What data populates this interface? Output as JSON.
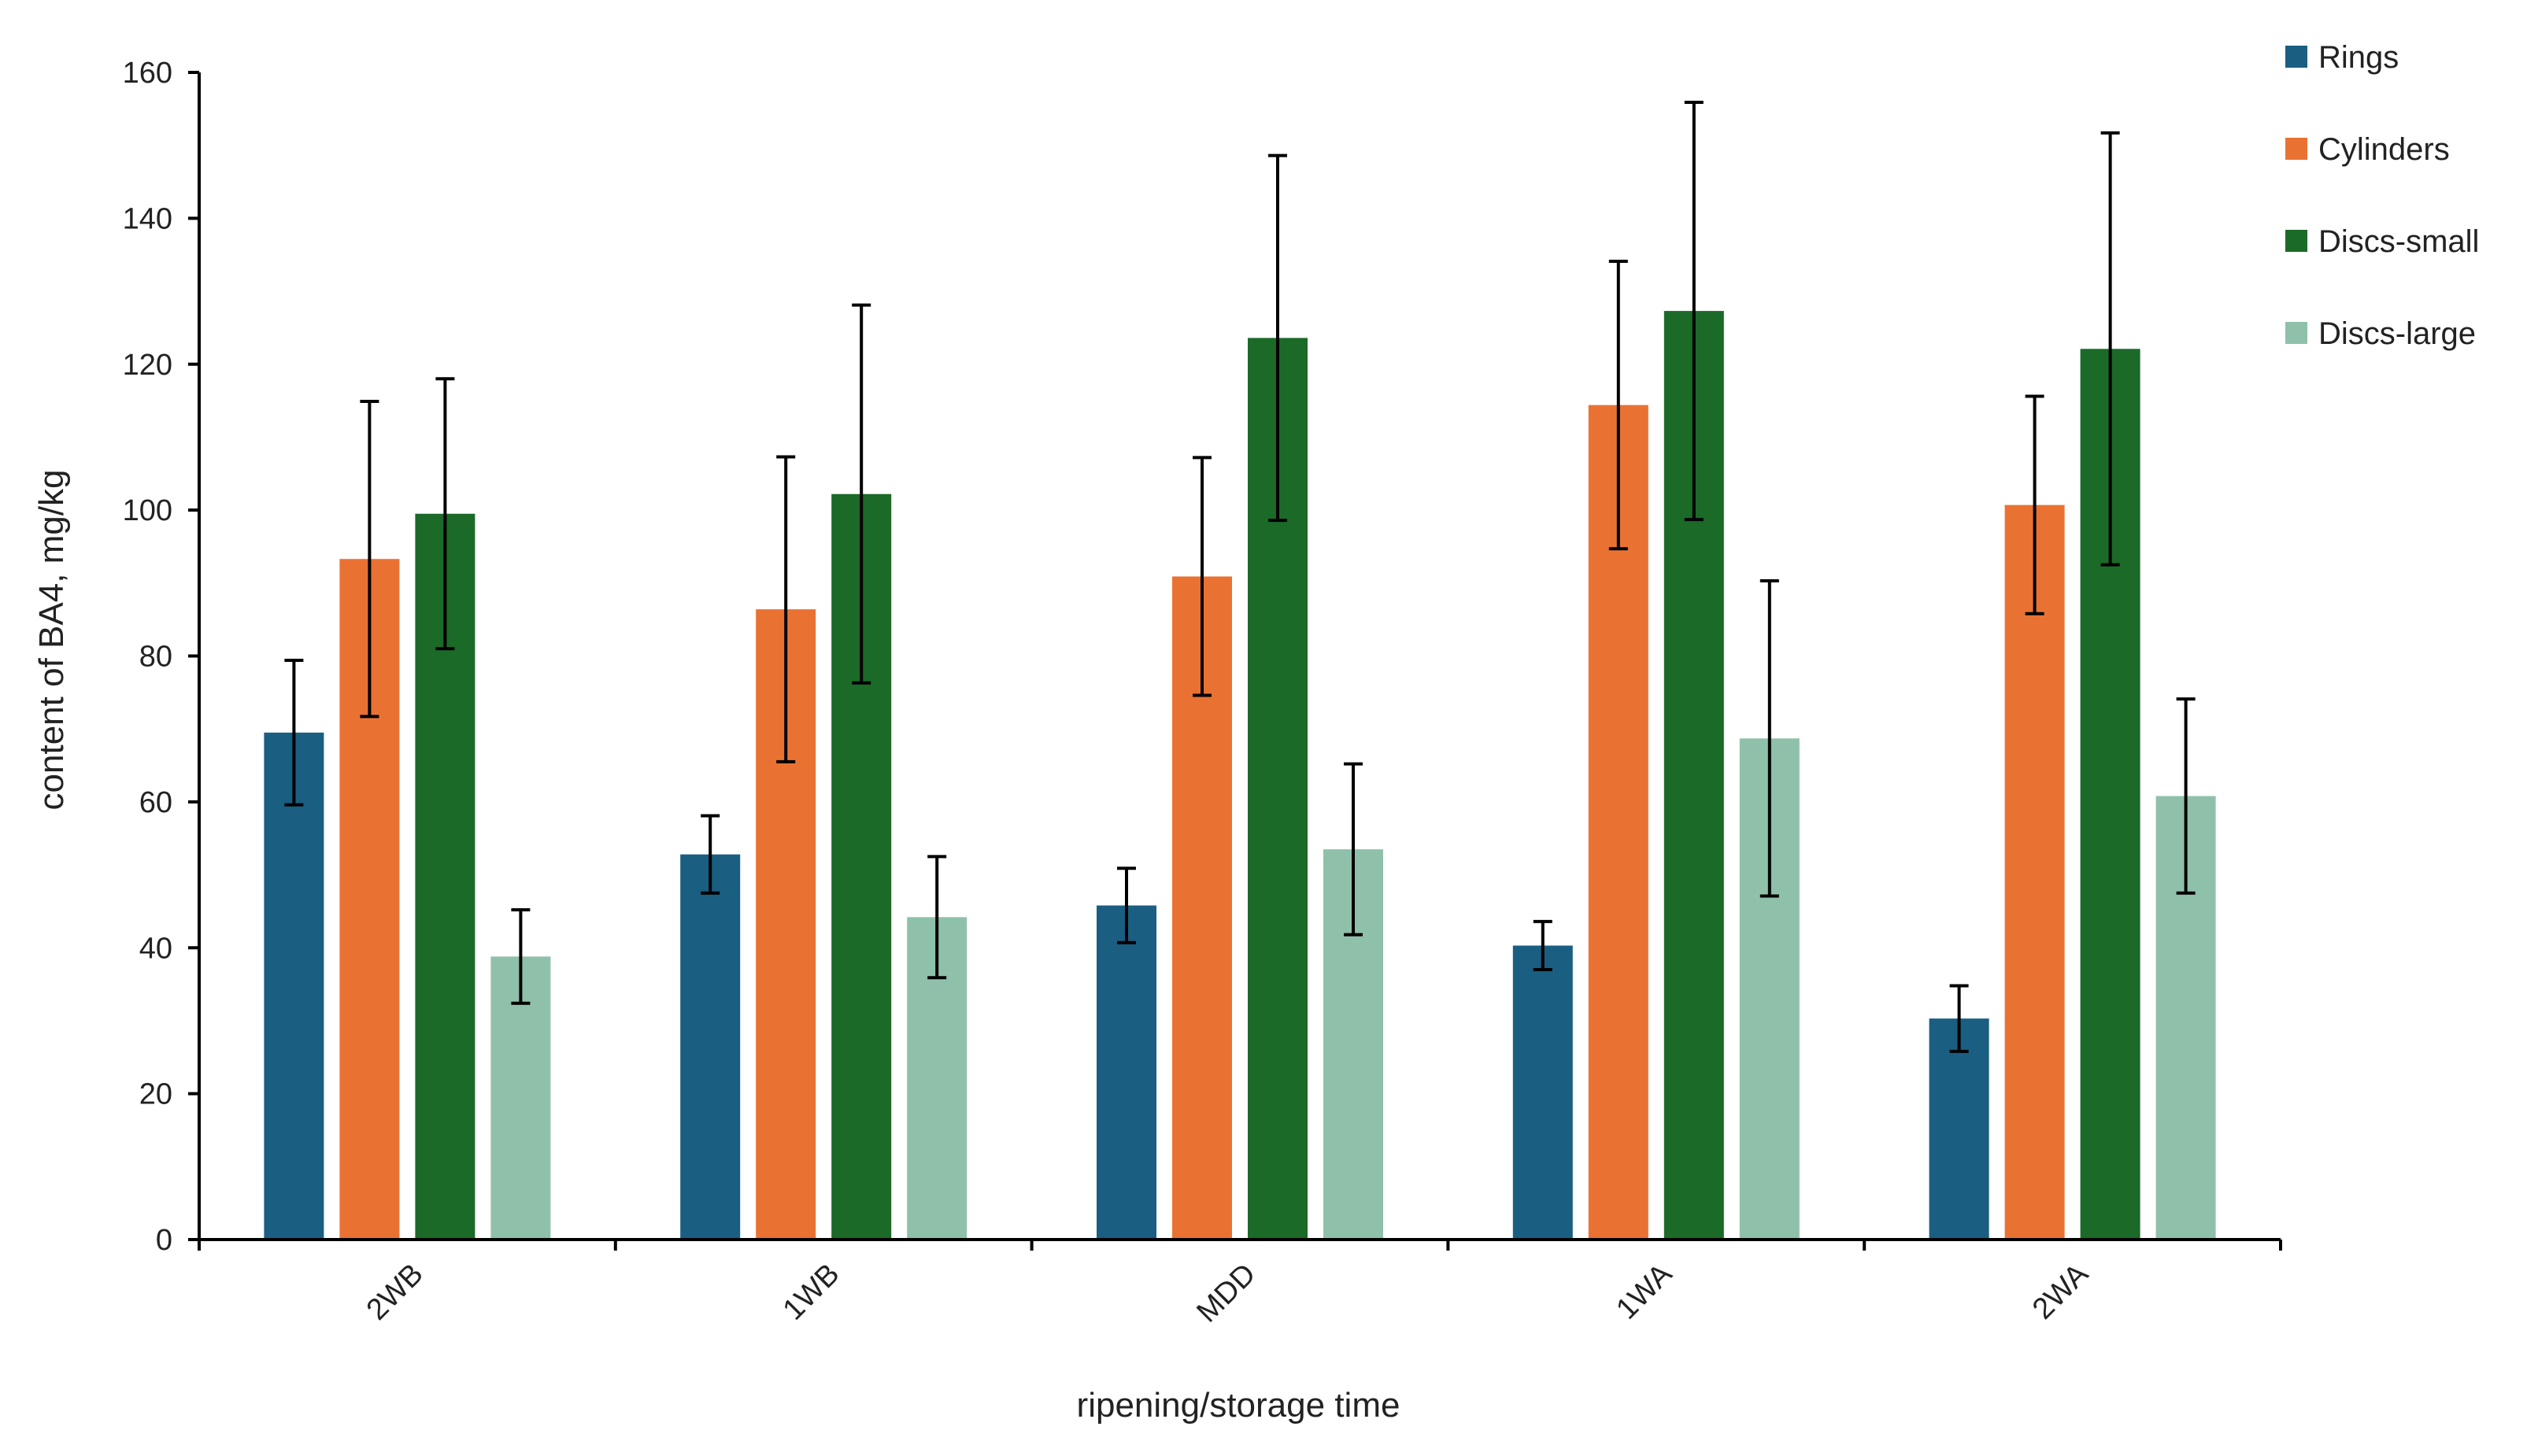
{
  "chart_data": {
    "type": "bar",
    "title": "",
    "xlabel": "ripening/storage time",
    "ylabel": "content of BA4, mg/kg",
    "ylim": [
      0,
      160
    ],
    "yticks": [
      "0",
      "20",
      "40",
      "60",
      "80",
      "100",
      "120",
      "140",
      "160"
    ],
    "categories": [
      "2WB",
      "1WB",
      "MDD",
      "1WA",
      "2WA"
    ],
    "legend_position": "top-right",
    "grid": false,
    "error_bars": true,
    "series": [
      {
        "name": "Rings",
        "color": "#1a5e82",
        "values": [
          69.5,
          52.8,
          45.8,
          40.3,
          30.3
        ],
        "errors": [
          9.9,
          5.3,
          5.1,
          3.3,
          4.5
        ]
      },
      {
        "name": "Cylinders",
        "color": "#e97233",
        "values": [
          93.3,
          86.4,
          90.9,
          114.4,
          100.7
        ],
        "errors": [
          21.6,
          20.9,
          16.3,
          19.7,
          14.9
        ]
      },
      {
        "name": "Discs-small",
        "color": "#1b6a28",
        "values": [
          99.5,
          102.2,
          123.6,
          127.3,
          122.1
        ],
        "errors": [
          18.5,
          25.9,
          25.0,
          28.6,
          29.6
        ]
      },
      {
        "name": "Discs-large",
        "color": "#8fc1aa",
        "values": [
          38.8,
          44.2,
          53.5,
          68.7,
          60.8
        ],
        "errors": [
          6.4,
          8.3,
          11.7,
          21.6,
          13.3
        ]
      }
    ]
  }
}
